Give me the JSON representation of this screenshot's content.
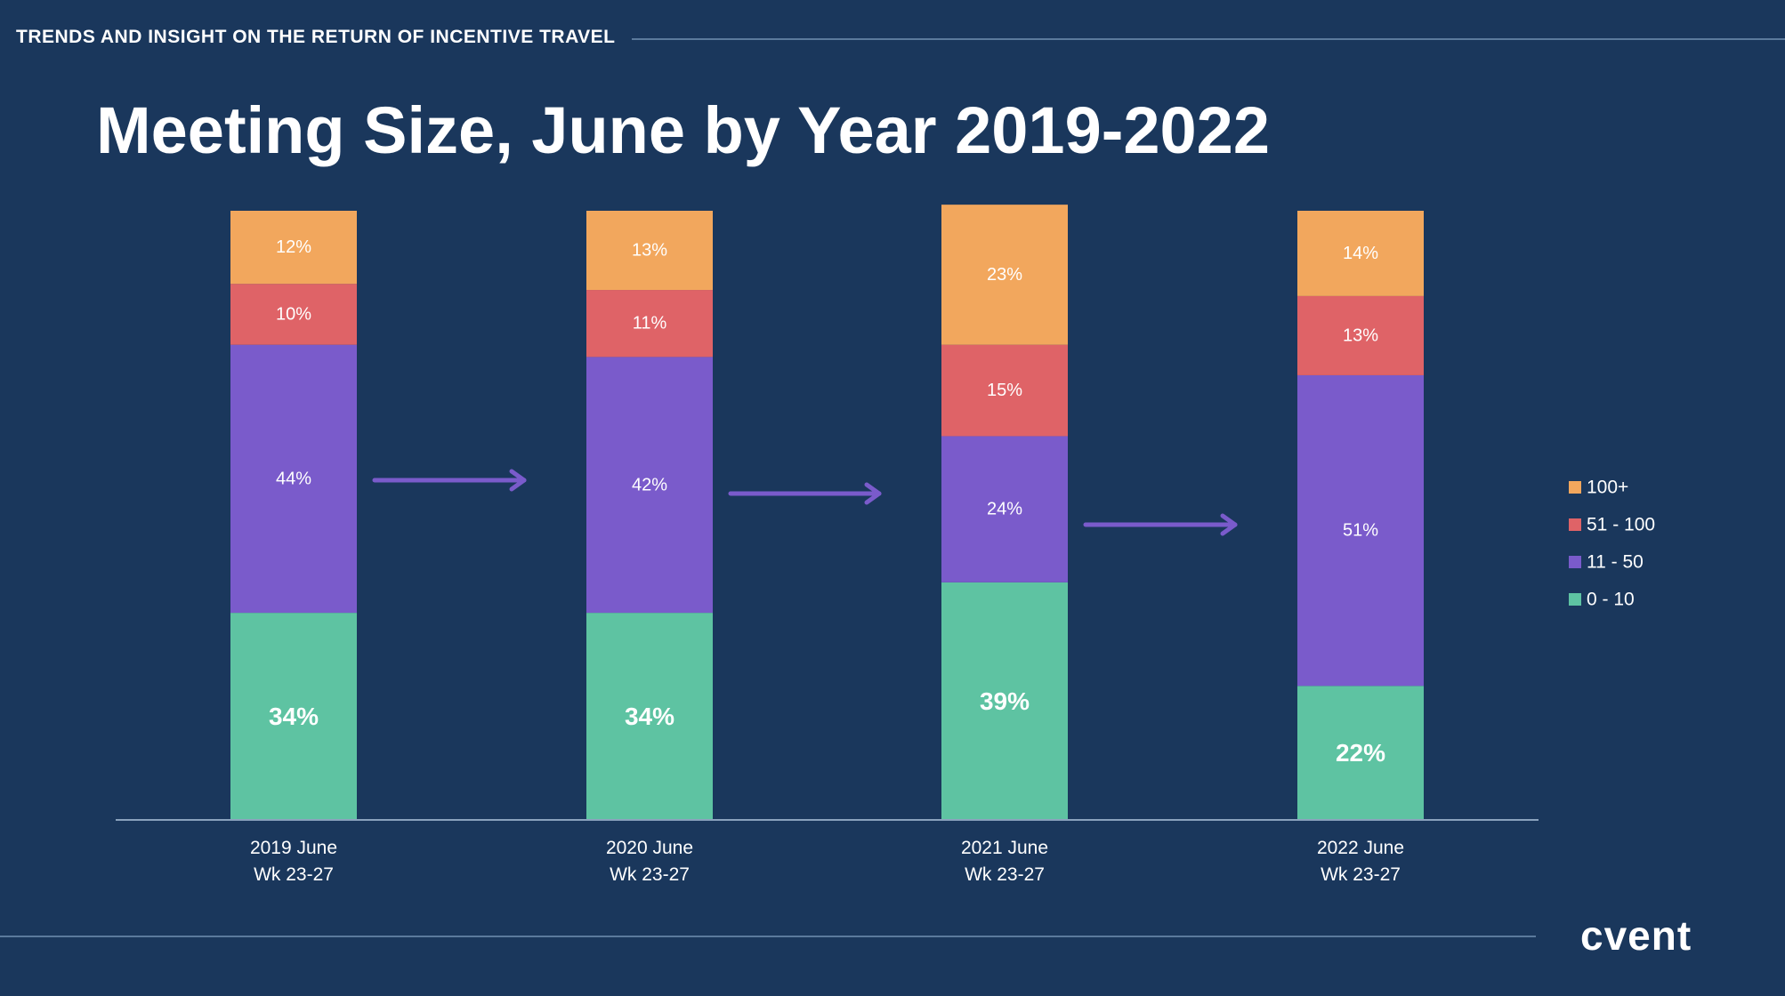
{
  "header": {
    "text": "TRENDS AND INSIGHT ON THE RETURN OF INCENTIVE TRAVEL"
  },
  "title": "Meeting Size, June by Year 2019-2022",
  "logo": "cvent",
  "colors": {
    "background": "#1a375c",
    "seg_0_10": "#5ec3a2",
    "seg_11_50": "#7a5bcb",
    "seg_51_100": "#df6367",
    "seg_100_plus": "#f2a75d",
    "arrow": "#7a5bcb"
  },
  "chart_data": {
    "type": "bar",
    "stacked": true,
    "title": "Meeting Size, June by Year 2019-2022",
    "categories": [
      [
        "2019 June",
        "Wk 23-27"
      ],
      [
        "2020 June",
        "Wk 23-27"
      ],
      [
        "2021 June",
        "Wk 23-27"
      ],
      [
        "2022 June",
        "Wk 23-27"
      ]
    ],
    "series": [
      {
        "name": "0 - 10",
        "color": "#5ec3a2",
        "values": [
          34,
          34,
          39,
          22
        ],
        "labels": [
          "34%",
          "34%",
          "39%",
          "22%"
        ]
      },
      {
        "name": "11 - 50",
        "color": "#7a5bcb",
        "values": [
          44,
          42,
          24,
          51
        ],
        "labels": [
          "44%",
          "42%",
          "24%",
          "51%"
        ]
      },
      {
        "name": "51 - 100",
        "color": "#df6367",
        "values": [
          10,
          11,
          15,
          13
        ],
        "labels": [
          "10%",
          "11%",
          "15%",
          "13%"
        ]
      },
      {
        "name": "100+",
        "color": "#f2a75d",
        "values": [
          12,
          13,
          23,
          14
        ],
        "labels": [
          "12%",
          "13%",
          "23%",
          "14%"
        ]
      }
    ],
    "legend": {
      "position": "right",
      "order": [
        "100+",
        "51 - 100",
        "11 - 50",
        "0 - 10"
      ]
    },
    "ylim": [
      0,
      100
    ],
    "xlabel": "",
    "ylabel": "",
    "grid": false
  }
}
